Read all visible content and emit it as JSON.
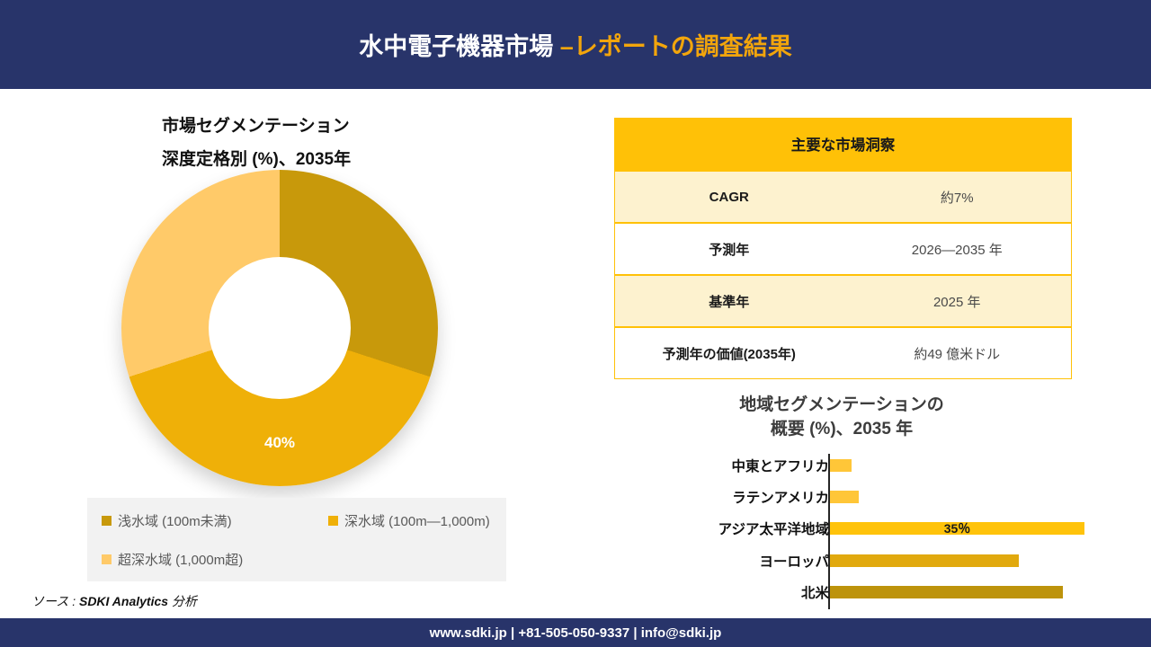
{
  "header": {
    "title_white": "水中電子機器市場 ",
    "title_accent": "–レポートの調査結果"
  },
  "donut_section": {
    "title_line1": "市場セグメンテーション",
    "title_line2": "深度定格別 (%)、2035年"
  },
  "insights_table": {
    "header": "主要な市場洞察",
    "rows": [
      {
        "label": "CAGR",
        "value": "約7%"
      },
      {
        "label": "予測年",
        "value": "2026—2035 年"
      },
      {
        "label": "基準年",
        "value": "2025 年"
      },
      {
        "label": "予測年の価値(2035年)",
        "value": "約49 億米ドル"
      }
    ]
  },
  "bar_section": {
    "title_line1": "地域セグメンテーションの",
    "title_line2": "概要 (%)、2035 年"
  },
  "chart_data": [
    {
      "type": "pie",
      "subtype": "donut",
      "title": "市場セグメンテーション 深度定格別 (%)、2035年",
      "labels": [
        "浅水域 (100m未満)",
        "深水域 (100m—1,000m)",
        "超深水域 (1,000m超)"
      ],
      "values": [
        30,
        40,
        30
      ],
      "unit": "%",
      "colors": [
        "#C8990B",
        "#EFB008",
        "#FFCA69"
      ],
      "data_labels": [
        "",
        "40%",
        ""
      ],
      "legend_position": "bottom"
    },
    {
      "type": "bar",
      "orientation": "horizontal",
      "title": "地域セグメンテーションの 概要 (%)、2035 年",
      "categories": [
        "中東とアフリカ",
        "ラテンアメリカ",
        "アジア太平洋地域",
        "ヨーロッパ",
        "北米"
      ],
      "values": [
        3,
        4,
        35,
        26,
        32
      ],
      "unit": "%",
      "colors": [
        "#FFC638",
        "#FFC638",
        "#FFC30B",
        "#E1A90E",
        "#BD930B"
      ],
      "value_labels": [
        "",
        "",
        "35％",
        "",
        ""
      ],
      "xlim": [
        0,
        36
      ],
      "grid": false,
      "legend_position": "none"
    }
  ],
  "source": {
    "prefix": "ソース : ",
    "bold": "SDKI Analytics",
    "suffix": " 分析"
  },
  "footer": {
    "text": "www.sdki.jp | +81-505-050-9337 | info@sdki.jp"
  },
  "colors": {
    "navy": "#28346A",
    "accent_orange": "#F2A50C",
    "table_gold": "#FFC107",
    "table_cream": "#FDF2CF",
    "legend_bg": "#F2F2F2"
  }
}
